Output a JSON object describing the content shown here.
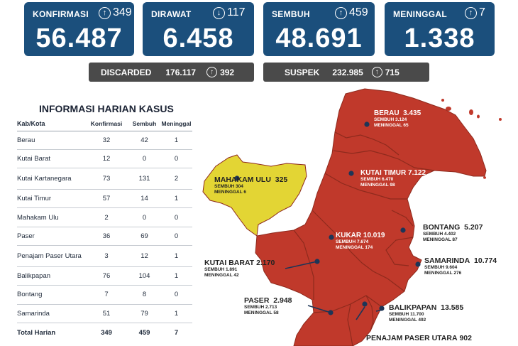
{
  "cards": [
    {
      "label": "KONFIRMASI",
      "delta": "349",
      "direction": "up",
      "value": "56.487"
    },
    {
      "label": "DIRAWAT",
      "delta": "117",
      "direction": "down",
      "value": "6.458"
    },
    {
      "label": "SEMBUH",
      "delta": "459",
      "direction": "up",
      "value": "48.691"
    },
    {
      "label": "MENINGGAL",
      "delta": "7",
      "direction": "up",
      "value": "1.338"
    }
  ],
  "sub_cards": [
    {
      "label": "DISCARDED",
      "value": "176.117",
      "delta": "392",
      "direction": "up"
    },
    {
      "label": "SUSPEK",
      "value": "232.985",
      "delta": "715",
      "direction": "up"
    }
  ],
  "table": {
    "title": "INFORMASI HARIAN KASUS",
    "headers": [
      "Kab/Kota",
      "Konfirmasi",
      "Sembuh",
      "Meninggal"
    ],
    "rows": [
      [
        "Berau",
        "32",
        "42",
        "1"
      ],
      [
        "Kutai Barat",
        "12",
        "0",
        "0"
      ],
      [
        "Kutai Kartanegara",
        "73",
        "131",
        "2"
      ],
      [
        "Kutai Timur",
        "57",
        "14",
        "1"
      ],
      [
        "Mahakam Ulu",
        "2",
        "0",
        "0"
      ],
      [
        "Paser",
        "36",
        "69",
        "0"
      ],
      [
        "Penajam Paser Utara",
        "3",
        "12",
        "1"
      ],
      [
        "Balikpapan",
        "76",
        "104",
        "1"
      ],
      [
        "Bontang",
        "7",
        "8",
        "0"
      ],
      [
        "Samarinda",
        "51",
        "79",
        "1"
      ]
    ],
    "total": [
      "Total Harian",
      "349",
      "459",
      "7"
    ]
  },
  "map": {
    "colors": {
      "region": "#c0392b",
      "mahakam": "#e3d534",
      "border": "#8e2a1d",
      "dot": "#1d3557"
    },
    "regions": [
      {
        "key": "berau",
        "name": "BERAU",
        "total": "3.435",
        "sembuh": "SEMBUH 3.124",
        "meninggal": "MENINGGAL 65"
      },
      {
        "key": "kutai_timur",
        "name": "KUTAI TIMUR",
        "total": "7.122",
        "sembuh": "SEMBUH 6.470",
        "meninggal": "MENINGGAL 98"
      },
      {
        "key": "mahakam_ulu",
        "name": "MAHAKAM ULU",
        "total": "325",
        "sembuh": "SEMBUH 304",
        "meninggal": "MENINGGAL 6"
      },
      {
        "key": "kukar",
        "name": "KUKAR",
        "total": "10.019",
        "sembuh": "SEMBUH 7.674",
        "meninggal": "MENINGGAL 174"
      },
      {
        "key": "bontang",
        "name": "BONTANG",
        "total": "5.207",
        "sembuh": "SEMBUH 4.402",
        "meninggal": "MENINGGAL 87"
      },
      {
        "key": "samarinda",
        "name": "SAMARINDA",
        "total": "10.774",
        "sembuh": "SEMBUH 9.604",
        "meninggal": "MENINGGAL 276"
      },
      {
        "key": "kutai_barat",
        "name": "KUTAI BARAT",
        "total": "2.170",
        "sembuh": "SEMBUH 1.891",
        "meninggal": "MENINGGAL 42"
      },
      {
        "key": "paser",
        "name": "PASER",
        "total": "2.948",
        "sembuh": "SEMBUH 2.713",
        "meninggal": "MENINGGAL 58"
      },
      {
        "key": "balikpapan",
        "name": "BALIKPAPAN",
        "total": "13.585",
        "sembuh": "SEMBUH 11.700",
        "meninggal": "MENINGGAL 492"
      },
      {
        "key": "ppu",
        "name": "PENAJAM PASER UTARA",
        "total": "902"
      }
    ]
  }
}
